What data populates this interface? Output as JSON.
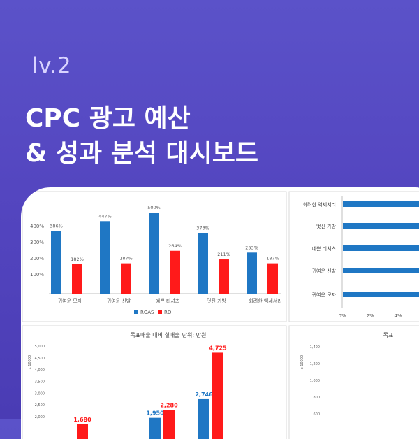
{
  "header": {
    "level": "lv.2",
    "title_line1": "CPC 광고 예산",
    "title_line2": "& 성과 분석 대시보드"
  },
  "chart_data": [
    {
      "type": "bar",
      "categories": [
        "귀여운 모자",
        "귀여운 신발",
        "예쁜 티셔츠",
        "멋진 가방",
        "화려한 액세서리"
      ],
      "series": [
        {
          "name": "ROAS",
          "values": [
            386,
            447,
            500,
            373,
            253
          ],
          "labels": [
            "386%",
            "447%",
            "500%",
            "373%",
            "253%"
          ],
          "color": "#1f77c4"
        },
        {
          "name": "ROI",
          "values": [
            182,
            187,
            264,
            211,
            187
          ],
          "labels": [
            "182%",
            "187%",
            "264%",
            "211%",
            "187%"
          ],
          "color": "#ff1a1a"
        }
      ],
      "yticks": [
        "100%",
        "200%",
        "300%",
        "400%"
      ],
      "ylim": [
        0,
        500
      ],
      "legend": "bottom"
    },
    {
      "type": "bar",
      "orientation": "horizontal",
      "categories": [
        "화려한 액세서리",
        "멋진 가방",
        "예쁜 티셔츠",
        "귀여운 신발",
        "귀여운 모자"
      ],
      "xticks": [
        "0%",
        "2%",
        "4%"
      ],
      "color": "#1f77c4"
    },
    {
      "type": "bar",
      "title": "목표매출 대비 실매출",
      "unit": "단위: 만원",
      "ylabel": "x 10000",
      "yticks": [
        "2,000",
        "2,500",
        "3,000",
        "3,500",
        "4,000",
        "4,500",
        "5,000"
      ],
      "data_labels": [
        {
          "value": 1680,
          "text": "1,680",
          "series": "red"
        },
        {
          "value": 1950,
          "text": "1,950",
          "series": "blue"
        },
        {
          "value": 2280,
          "text": "2,280",
          "series": "red"
        },
        {
          "value": 2746,
          "text": "2,746",
          "series": "blue"
        },
        {
          "value": 4725,
          "text": "4,725",
          "series": "red"
        }
      ]
    },
    {
      "type": "bar",
      "title": "목표",
      "ylabel": "x 10000",
      "yticks": [
        "600",
        "800",
        "1,000",
        "1,200",
        "1,400"
      ]
    }
  ]
}
